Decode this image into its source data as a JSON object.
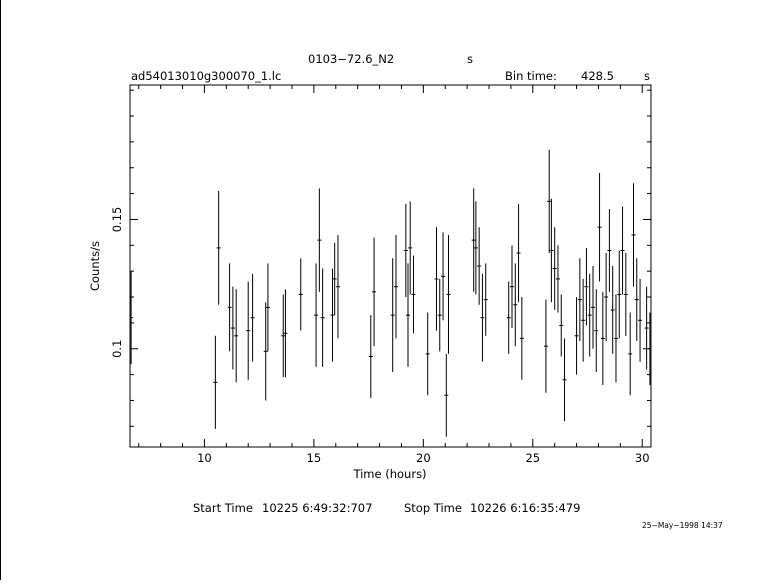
{
  "header": {
    "source_name": "0103−72.6_N2",
    "source_unit": "s",
    "filename": "ad54013010g300070_1.lc",
    "bin_label": "Bin time:",
    "bin_value": "428.5",
    "bin_unit": "s"
  },
  "footer": {
    "start_label": "Start Time",
    "start_value": "10225  6:49:32:707",
    "stop_label": "Stop Time",
    "stop_value": "10226  6:16:35:479",
    "stamp": "25−May−1998 14:37"
  },
  "chart_data": {
    "type": "scatter",
    "xlabel": "Time (hours)",
    "ylabel": "Counts/s",
    "xlim": [
      6.6,
      30.4
    ],
    "ylim": [
      0.062,
      0.202
    ],
    "xticks": [
      10,
      15,
      20,
      25,
      30
    ],
    "yticks": [
      0.1,
      0.15
    ],
    "ytick_labels": [
      "0.1",
      "0.15"
    ],
    "error_bars": true,
    "points": [
      [
        6.65,
        0.112,
        0.018
      ],
      [
        10.5,
        0.087,
        0.018
      ],
      [
        10.65,
        0.139,
        0.022
      ],
      [
        11.15,
        0.116,
        0.017
      ],
      [
        11.3,
        0.108,
        0.016
      ],
      [
        11.45,
        0.105,
        0.018
      ],
      [
        12.0,
        0.107,
        0.019
      ],
      [
        12.2,
        0.112,
        0.017
      ],
      [
        12.8,
        0.099,
        0.019
      ],
      [
        12.9,
        0.116,
        0.017
      ],
      [
        13.6,
        0.105,
        0.016
      ],
      [
        13.7,
        0.106,
        0.017
      ],
      [
        14.4,
        0.121,
        0.014
      ],
      [
        15.1,
        0.113,
        0.02
      ],
      [
        15.25,
        0.142,
        0.02
      ],
      [
        15.4,
        0.112,
        0.019
      ],
      [
        15.85,
        0.113,
        0.018
      ],
      [
        15.95,
        0.127,
        0.014
      ],
      [
        16.1,
        0.124,
        0.02
      ],
      [
        17.6,
        0.097,
        0.016
      ],
      [
        17.75,
        0.122,
        0.021
      ],
      [
        18.6,
        0.113,
        0.022
      ],
      [
        18.75,
        0.124,
        0.02
      ],
      [
        19.2,
        0.138,
        0.018
      ],
      [
        19.3,
        0.113,
        0.02
      ],
      [
        19.4,
        0.139,
        0.018
      ],
      [
        19.55,
        0.121,
        0.015
      ],
      [
        20.2,
        0.098,
        0.016
      ],
      [
        20.6,
        0.127,
        0.02
      ],
      [
        20.75,
        0.113,
        0.014
      ],
      [
        20.9,
        0.128,
        0.017
      ],
      [
        21.05,
        0.082,
        0.016
      ],
      [
        21.15,
        0.121,
        0.023
      ],
      [
        22.3,
        0.142,
        0.02
      ],
      [
        22.4,
        0.139,
        0.018
      ],
      [
        22.55,
        0.132,
        0.015
      ],
      [
        22.7,
        0.112,
        0.017
      ],
      [
        22.85,
        0.119,
        0.014
      ],
      [
        23.9,
        0.112,
        0.014
      ],
      [
        24.05,
        0.124,
        0.016
      ],
      [
        24.2,
        0.117,
        0.016
      ],
      [
        24.35,
        0.137,
        0.019
      ],
      [
        24.5,
        0.104,
        0.016
      ],
      [
        25.6,
        0.101,
        0.018
      ],
      [
        25.75,
        0.157,
        0.02
      ],
      [
        25.85,
        0.138,
        0.02
      ],
      [
        26.0,
        0.131,
        0.016
      ],
      [
        26.15,
        0.127,
        0.013
      ],
      [
        26.3,
        0.109,
        0.012
      ],
      [
        26.45,
        0.088,
        0.016
      ],
      [
        27.0,
        0.105,
        0.015
      ],
      [
        27.15,
        0.119,
        0.016
      ],
      [
        27.3,
        0.111,
        0.016
      ],
      [
        27.45,
        0.124,
        0.015
      ],
      [
        27.6,
        0.113,
        0.016
      ],
      [
        27.75,
        0.116,
        0.016
      ],
      [
        27.9,
        0.107,
        0.016
      ],
      [
        28.05,
        0.147,
        0.021
      ],
      [
        28.2,
        0.104,
        0.018
      ],
      [
        28.35,
        0.12,
        0.017
      ],
      [
        28.5,
        0.138,
        0.016
      ],
      [
        28.65,
        0.115,
        0.017
      ],
      [
        28.8,
        0.104,
        0.017
      ],
      [
        28.95,
        0.121,
        0.017
      ],
      [
        29.1,
        0.138,
        0.017
      ],
      [
        29.25,
        0.121,
        0.016
      ],
      [
        29.45,
        0.098,
        0.016
      ],
      [
        29.6,
        0.144,
        0.02
      ],
      [
        29.75,
        0.119,
        0.016
      ],
      [
        29.9,
        0.111,
        0.016
      ],
      [
        30.2,
        0.108,
        0.016
      ],
      [
        30.35,
        0.1,
        0.014
      ]
    ]
  }
}
